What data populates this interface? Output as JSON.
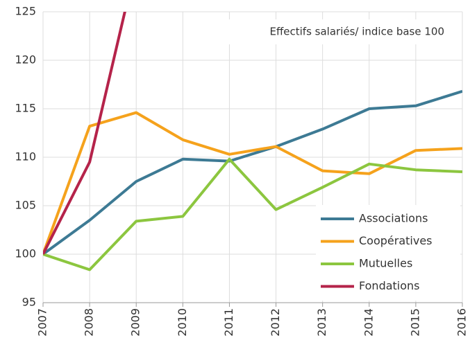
{
  "chart_data": {
    "type": "line",
    "annotation": "Effectifs salariés/ indice base 100",
    "x": [
      2007,
      2008,
      2009,
      2010,
      2011,
      2012,
      2013,
      2014,
      2015,
      2016
    ],
    "xlim": [
      2007,
      2016
    ],
    "xticks": [
      2007,
      2008,
      2009,
      2010,
      2011,
      2012,
      2013,
      2014,
      2015,
      2016
    ],
    "ylim": [
      95,
      125
    ],
    "yticks": [
      95,
      100,
      105,
      110,
      115,
      120,
      125
    ],
    "grid": true,
    "legend": "lower right",
    "series": [
      {
        "name": "Associations",
        "color": "#3d7a94",
        "values": [
          100,
          103.5,
          107.5,
          109.8,
          109.6,
          111.1,
          112.9,
          115,
          115.3,
          116.8
        ]
      },
      {
        "name": "Coopératives",
        "color": "#f5a21c",
        "values": [
          100,
          113.2,
          114.6,
          111.8,
          110.3,
          111.1,
          108.6,
          108.3,
          110.7,
          110.9
        ]
      },
      {
        "name": "Mutuelles",
        "color": "#8cc63f",
        "values": [
          100,
          98.4,
          103.4,
          103.9,
          109.8,
          104.6,
          106.9,
          109.3,
          108.7,
          108.5
        ]
      },
      {
        "name": "Fondations",
        "color": "#b5234a",
        "values": [
          100,
          109.5,
          130,
          null,
          null,
          null,
          null,
          null,
          null,
          null
        ]
      }
    ]
  }
}
